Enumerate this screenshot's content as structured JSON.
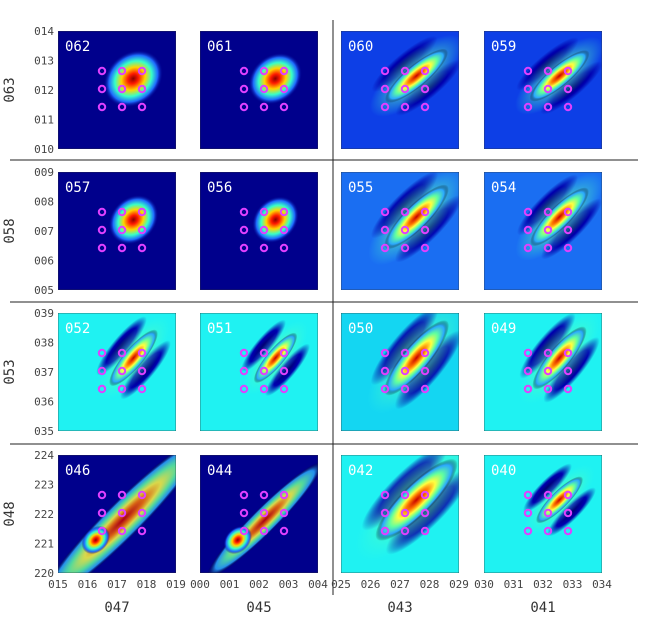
{
  "chart_data": {
    "type": "heatmap",
    "title": "",
    "panel_grid": {
      "rows": 4,
      "cols": 4
    },
    "row_labels": [
      "063",
      "058",
      "053",
      "048"
    ],
    "col_labels": [
      "047",
      "045",
      "043",
      "041"
    ],
    "y_ticks": [
      [
        "014",
        "013",
        "012",
        "011",
        "010"
      ],
      [
        "009",
        "008",
        "007",
        "006",
        "005"
      ],
      [
        "039",
        "038",
        "037",
        "036",
        "035"
      ],
      [
        "224",
        "223",
        "222",
        "221",
        "220"
      ]
    ],
    "x_ticks": [
      [
        "015",
        "016",
        "017",
        "018",
        "019"
      ],
      [
        "000",
        "001",
        "002",
        "003",
        "004"
      ],
      [
        "025",
        "026",
        "027",
        "028",
        "029"
      ],
      [
        "030",
        "031",
        "032",
        "033",
        "034"
      ]
    ],
    "panels": [
      {
        "id": "062",
        "row": 0,
        "col": 0,
        "style": "peak",
        "bg": "#00008c",
        "angle": -40,
        "spread": 1.0
      },
      {
        "id": "061",
        "row": 0,
        "col": 1,
        "style": "peak",
        "bg": "#00008c",
        "angle": -40,
        "spread": 0.9
      },
      {
        "id": "060",
        "row": 0,
        "col": 2,
        "style": "ridge",
        "bg": "#0d3fe6",
        "angle": -40,
        "spread": 1.0
      },
      {
        "id": "059",
        "row": 0,
        "col": 3,
        "style": "ridge",
        "bg": "#0d3fe6",
        "angle": -40,
        "spread": 0.95
      },
      {
        "id": "057",
        "row": 1,
        "col": 0,
        "style": "peak",
        "bg": "#00008c",
        "angle": -45,
        "spread": 0.85
      },
      {
        "id": "056",
        "row": 1,
        "col": 1,
        "style": "peak",
        "bg": "#00008c",
        "angle": -45,
        "spread": 0.8
      },
      {
        "id": "055",
        "row": 1,
        "col": 2,
        "style": "ridge",
        "bg": "#1a6ef2",
        "angle": -45,
        "spread": 1.1
      },
      {
        "id": "054",
        "row": 1,
        "col": 3,
        "style": "ridge",
        "bg": "#1a6ef2",
        "angle": -45,
        "spread": 1.0
      },
      {
        "id": "052",
        "row": 2,
        "col": 0,
        "style": "ridge",
        "bg": "#1ff2f2",
        "angle": -50,
        "spread": 0.9
      },
      {
        "id": "051",
        "row": 2,
        "col": 1,
        "style": "ridge",
        "bg": "#1ff2f2",
        "angle": -50,
        "spread": 0.8
      },
      {
        "id": "050",
        "row": 2,
        "col": 2,
        "style": "ridge",
        "bg": "#14d6f2",
        "angle": -50,
        "spread": 1.2
      },
      {
        "id": "049",
        "row": 2,
        "col": 3,
        "style": "ridge",
        "bg": "#1ff2f2",
        "angle": -50,
        "spread": 1.0
      },
      {
        "id": "046",
        "row": 3,
        "col": 0,
        "style": "long-ridge",
        "bg": "#00008c",
        "angle": -45,
        "spread": 1.3
      },
      {
        "id": "044",
        "row": 3,
        "col": 1,
        "style": "long-ridge",
        "bg": "#00008c",
        "angle": -45,
        "spread": 0.9
      },
      {
        "id": "042",
        "row": 3,
        "col": 2,
        "style": "ridge",
        "bg": "#1ff2f2",
        "angle": -45,
        "spread": 1.4
      },
      {
        "id": "040",
        "row": 3,
        "col": 3,
        "style": "ridge",
        "bg": "#1ff2f2",
        "angle": -45,
        "spread": 0.8
      }
    ],
    "markers": {
      "color": "#e040ff",
      "pattern": "3x3 grid with center point omitted in top-left corner"
    },
    "grid": false,
    "legend": "none"
  }
}
